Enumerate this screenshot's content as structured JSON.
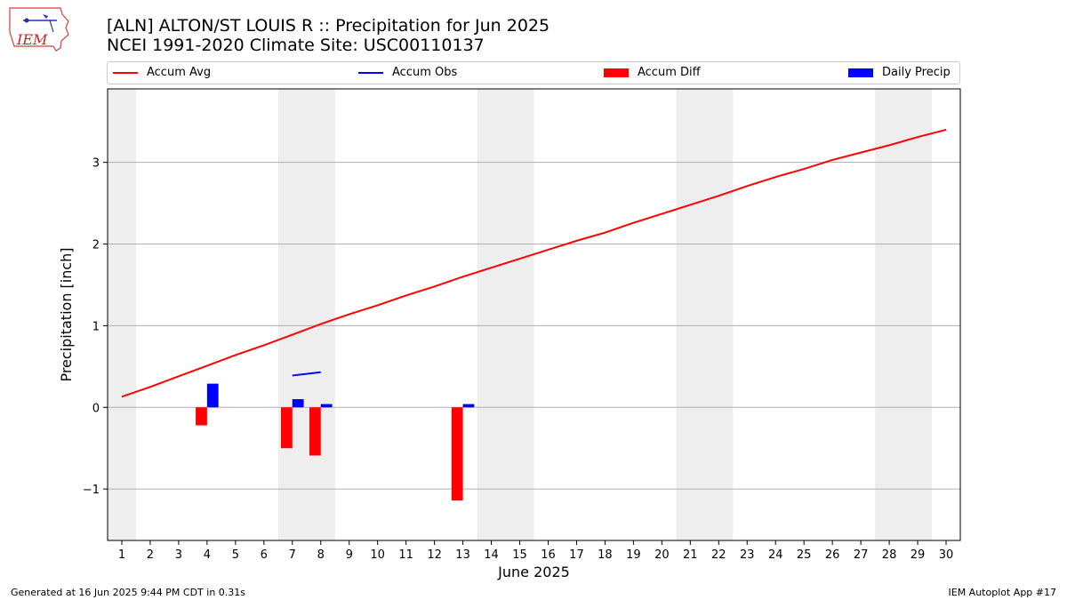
{
  "header": {
    "title_line1": "[ALN] ALTON/ST LOUIS R :: Precipitation for Jun 2025",
    "title_line2": "NCEI 1991-2020 Climate Site: USC00110137"
  },
  "logo": {
    "text": "IEM"
  },
  "footer": {
    "left": "Generated at 16 Jun 2025 9:44 PM CDT in 0.31s",
    "right": "IEM Autoplot App #17"
  },
  "colors": {
    "accum_avg": "#ff0000",
    "accum_obs": "#0000ff",
    "accum_diff": "#ff0000",
    "daily_precip": "#0000ff",
    "weekend_band": "#eeeeee",
    "grid": "#b0b0b0"
  },
  "chart_data": {
    "type": "bar",
    "xlabel": "June 2025",
    "ylabel": "Precipitation [inch]",
    "xlim": [
      0.5,
      30.5
    ],
    "ylim": [
      -1.63,
      3.9
    ],
    "yticks": [
      -1,
      0,
      1,
      2,
      3
    ],
    "ytick_labels": [
      "−1",
      "0",
      "1",
      "2",
      "3"
    ],
    "days": [
      1,
      2,
      3,
      4,
      5,
      6,
      7,
      8,
      9,
      10,
      11,
      12,
      13,
      14,
      15,
      16,
      17,
      18,
      19,
      20,
      21,
      22,
      23,
      24,
      25,
      26,
      27,
      28,
      29,
      30
    ],
    "weekend_ranges": [
      [
        0.5,
        1.5
      ],
      [
        6.5,
        8.5
      ],
      [
        13.5,
        15.5
      ],
      [
        20.5,
        22.5
      ],
      [
        27.5,
        29.5
      ]
    ],
    "grid": "horizontal",
    "legend_position": "top",
    "legend": [
      "Accum Avg",
      "Accum Obs",
      "Accum Diff",
      "Daily Precip"
    ],
    "series": [
      {
        "name": "Accum Avg",
        "type": "line",
        "x": [
          1,
          2,
          3,
          4,
          5,
          6,
          7,
          8,
          9,
          10,
          11,
          12,
          13,
          14,
          15,
          16,
          17,
          18,
          19,
          20,
          21,
          22,
          23,
          24,
          25,
          26,
          27,
          28,
          29,
          30
        ],
        "values": [
          0.13,
          0.25,
          0.38,
          0.51,
          0.64,
          0.76,
          0.89,
          1.02,
          1.14,
          1.25,
          1.37,
          1.48,
          1.6,
          1.71,
          1.82,
          1.93,
          2.04,
          2.14,
          2.26,
          2.37,
          2.48,
          2.59,
          2.71,
          2.82,
          2.92,
          3.03,
          3.12,
          3.21,
          3.31,
          3.4
        ]
      },
      {
        "name": "Accum Obs",
        "type": "line",
        "x": [
          7,
          8
        ],
        "values": [
          0.39,
          0.43
        ]
      },
      {
        "name": "Accum Diff",
        "type": "bar",
        "x": [
          4,
          7,
          8,
          13
        ],
        "values": [
          -0.22,
          -0.5,
          -0.59,
          -1.14
        ]
      },
      {
        "name": "Daily Precip",
        "type": "bar",
        "x": [
          4,
          7,
          8,
          13
        ],
        "values": [
          0.29,
          0.1,
          0.04,
          0.04
        ]
      }
    ]
  }
}
